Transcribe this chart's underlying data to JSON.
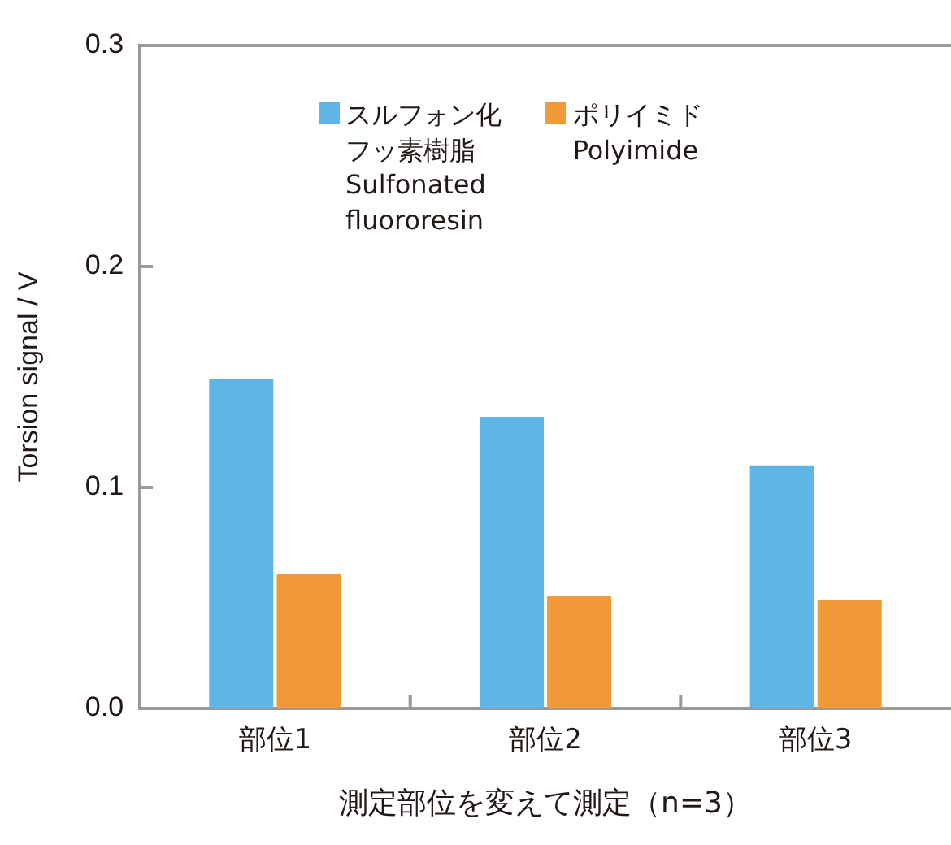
{
  "chart_data": {
    "type": "bar",
    "xlabel": "測定部位を変えて測定（n=3）",
    "ylabel": "Torsion signal / V",
    "categories": [
      "部位1",
      "部位2",
      "部位3"
    ],
    "series": [
      {
        "name": "スルフォン化フッ素樹脂 Sulfonated fluororesin",
        "color": "#5db5e8",
        "values": [
          0.149,
          0.132,
          0.11
        ]
      },
      {
        "name": "ポリイミド Polyimide",
        "color": "#f29a3a",
        "values": [
          0.061,
          0.051,
          0.049
        ]
      }
    ],
    "ylim": [
      0,
      0.3
    ],
    "yticks": [
      {
        "value": 0,
        "label": "0.0"
      },
      {
        "value": 0.1,
        "label": "0.1"
      },
      {
        "value": 0.2,
        "label": "0.2"
      },
      {
        "value": 0.3,
        "label": "0.3"
      }
    ],
    "grid": false,
    "legend": "top"
  }
}
